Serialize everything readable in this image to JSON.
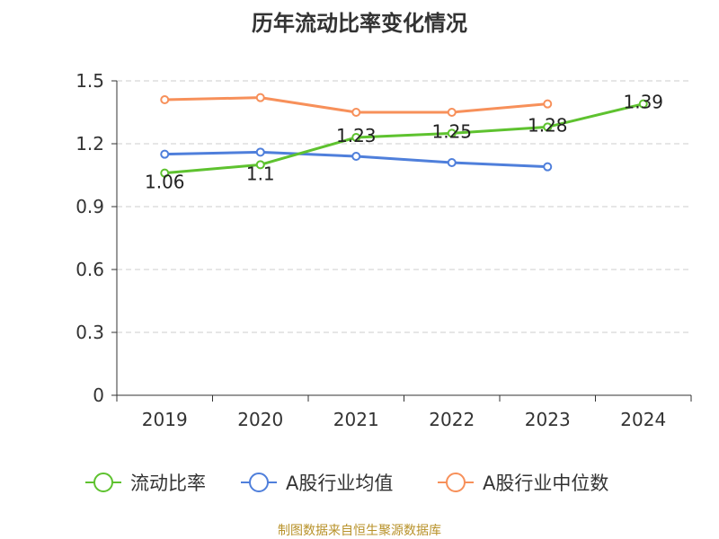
{
  "title": "历年流动比率变化情况",
  "footer": "制图数据来自恒生聚源数据库",
  "chart_data": {
    "type": "line",
    "categories": [
      "2019",
      "2020",
      "2021",
      "2022",
      "2023",
      "2024"
    ],
    "ylim": [
      0,
      1.5
    ],
    "yticks": [
      "0",
      "0.3",
      "0.6",
      "0.9",
      "1.2",
      "1.5"
    ],
    "grid": true,
    "legend_position": "bottom",
    "series": [
      {
        "name": "流动比率",
        "color": "#5ec22f",
        "values": [
          1.06,
          1.1,
          1.23,
          1.25,
          1.28,
          1.39
        ],
        "labels": [
          "1.06",
          "1.1",
          "1.23",
          "1.25",
          "1.28",
          "1.39"
        ]
      },
      {
        "name": "A股行业均值",
        "color": "#4f7fdb",
        "values": [
          1.15,
          1.16,
          1.14,
          1.11,
          1.09,
          null
        ]
      },
      {
        "name": "A股行业中位数",
        "color": "#f7905a",
        "values": [
          1.41,
          1.42,
          1.35,
          1.35,
          1.39,
          null
        ]
      }
    ]
  }
}
